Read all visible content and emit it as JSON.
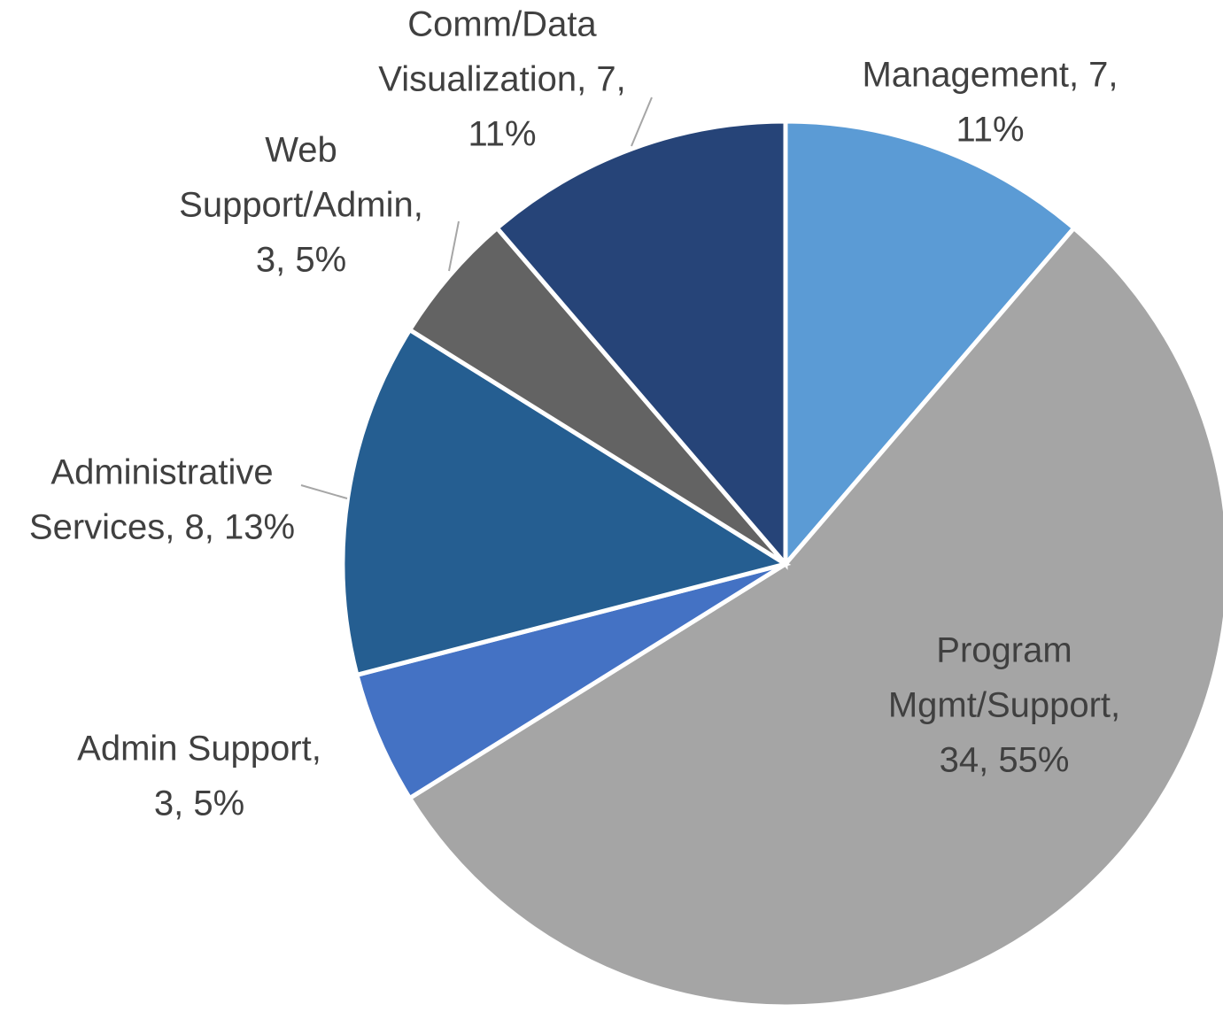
{
  "chart_data": {
    "type": "pie",
    "values": [
      7,
      34,
      3,
      8,
      3,
      7
    ],
    "labels": [
      [
        "Management, 7,",
        "11%"
      ],
      [
        "Program",
        "Mgmt/Support,",
        "34, 55%"
      ],
      [
        "Admin Support,",
        "3, 5%"
      ],
      [
        "Administrative",
        "Services, 8, 13%"
      ],
      [
        "Web",
        "Support/Admin,",
        "3, 5%"
      ],
      [
        "Comm/Data",
        "Visualization, 7,",
        "11%"
      ]
    ],
    "colors": [
      "#5b9bd5",
      "#a5a5a5",
      "#4472c4",
      "#255e91",
      "#636363",
      "#264478"
    ]
  }
}
